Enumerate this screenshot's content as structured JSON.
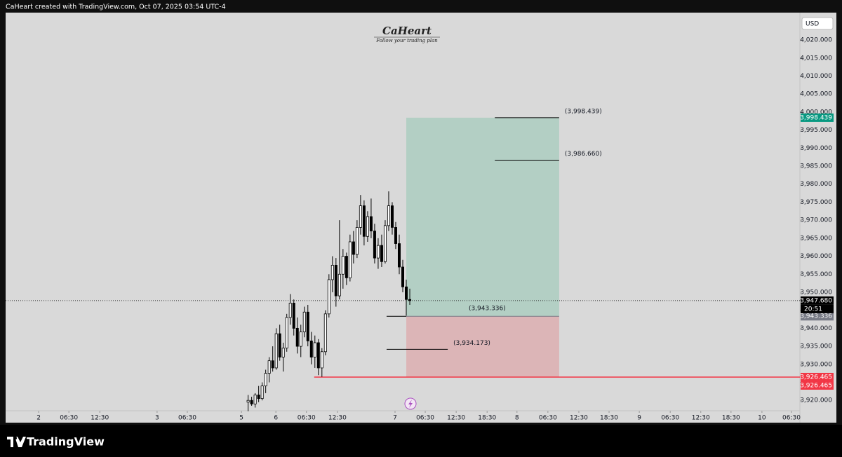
{
  "header": {
    "text": "CaHeart created with TradingView.com, Oct 07, 2025 03:54 UTC-4"
  },
  "watermark": {
    "title": "CaHeart",
    "subtitle": "Follow your trading plan"
  },
  "footer": {
    "brand": "TradingView"
  },
  "chart_data": {
    "type": "candlestick",
    "currency": "USD",
    "up_color": "#ffffff",
    "down_color": "#000000",
    "x": [
      69,
      70,
      71,
      72,
      73,
      74,
      75,
      76,
      77,
      78,
      79,
      80,
      81,
      82,
      83,
      84,
      85,
      86,
      87,
      88,
      89,
      90,
      91,
      92,
      93,
      94,
      95,
      96,
      97,
      98,
      99,
      100,
      101,
      102,
      103,
      104,
      105,
      106,
      107,
      108,
      109,
      110,
      111,
      112,
      113,
      114,
      115
    ],
    "open": [
      3919.5,
      3920,
      3919,
      3921.5,
      3920.5,
      3924,
      3927.5,
      3931,
      3929,
      3938.5,
      3932,
      3934.5,
      3943,
      3947,
      3940,
      3935,
      3939,
      3944.5,
      3936.5,
      3932,
      3936,
      3929,
      3933.5,
      3944,
      3953.5,
      3957.5,
      3949,
      3955,
      3960,
      3954,
      3964,
      3960.5,
      3968,
      3974,
      3965.5,
      3971,
      3967,
      3959.5,
      3963,
      3958.5,
      3968.5,
      3974,
      3968,
      3963.5,
      3957,
      3951.5,
      3948
    ],
    "high": [
      3921.5,
      3921,
      3922,
      3924,
      3925,
      3928.5,
      3932,
      3935,
      3940,
      3941,
      3936,
      3944,
      3949.5,
      3948,
      3943,
      3941,
      3946,
      3946.5,
      3939,
      3938,
      3937,
      3934.5,
      3945,
      3955,
      3960,
      3959.5,
      3970,
      3962,
      3961,
      3966,
      3967,
      3970,
      3977,
      3975.5,
      3972.5,
      3976,
      3969,
      3965,
      3966,
      3970,
      3978,
      3975,
      3969.5,
      3966,
      3959,
      3953.5,
      3951
    ],
    "low": [
      3917,
      3918.5,
      3918,
      3919.5,
      3920,
      3922,
      3925,
      3928,
      3928.5,
      3931,
      3928,
      3933.5,
      3941,
      3938,
      3933,
      3932,
      3937.5,
      3935,
      3930,
      3929,
      3927,
      3926.5,
      3932.5,
      3943,
      3950,
      3946,
      3948,
      3951,
      3952,
      3953,
      3958,
      3959.5,
      3966,
      3963,
      3964,
      3965,
      3958,
      3956.5,
      3957,
      3958,
      3967,
      3966,
      3962,
      3955,
      3950,
      3943.5,
      3946.5
    ],
    "close": [
      3920,
      3919,
      3921.5,
      3920.5,
      3924,
      3927.5,
      3931,
      3929,
      3938.5,
      3932,
      3934.5,
      3943,
      3947,
      3940,
      3935,
      3939,
      3944.5,
      3936.5,
      3932,
      3936,
      3929,
      3933.5,
      3944,
      3953.5,
      3957.5,
      3949,
      3955,
      3960,
      3954,
      3964,
      3960.5,
      3968,
      3974,
      3965.5,
      3971,
      3967,
      3959.5,
      3963,
      3958.5,
      3968.5,
      3974,
      3968,
      3963.5,
      3957,
      3951.5,
      3948,
      3947.68
    ],
    "xlim": [
      0,
      226
    ],
    "xticks": [
      {
        "value": 9.4,
        "label": "2"
      },
      {
        "value": 18,
        "label": "06:30"
      },
      {
        "value": 26.8,
        "label": "12:30"
      },
      {
        "value": 43.1,
        "label": "3"
      },
      {
        "value": 51.7,
        "label": "06:30"
      },
      {
        "value": 67.1,
        "label": "5"
      },
      {
        "value": 76.9,
        "label": "6"
      },
      {
        "value": 85.6,
        "label": "06:30"
      },
      {
        "value": 94.4,
        "label": "12:30"
      },
      {
        "value": 110.8,
        "label": "7"
      },
      {
        "value": 119.4,
        "label": "06:30"
      },
      {
        "value": 128.2,
        "label": "12:30"
      },
      {
        "value": 137,
        "label": "18:30"
      },
      {
        "value": 145.5,
        "label": "8"
      },
      {
        "value": 154.3,
        "label": "06:30"
      },
      {
        "value": 163.1,
        "label": "12:30"
      },
      {
        "value": 171.7,
        "label": "18:30"
      },
      {
        "value": 180.3,
        "label": "9"
      },
      {
        "value": 189.1,
        "label": "06:30"
      },
      {
        "value": 197.8,
        "label": "12:30"
      },
      {
        "value": 206.4,
        "label": "18:30"
      },
      {
        "value": 215.2,
        "label": "10"
      },
      {
        "value": 223.6,
        "label": "06:30"
      }
    ],
    "ylim": [
      3914.4,
      4027.6
    ],
    "yticks": [
      {
        "value": 3920,
        "label": "3,920.000"
      },
      {
        "value": 3925,
        "label": "3,925.000"
      },
      {
        "value": 3930,
        "label": "3,930.000"
      },
      {
        "value": 3935,
        "label": "3,935.000"
      },
      {
        "value": 3940,
        "label": "3,940.000"
      },
      {
        "value": 3945,
        "label": "3,945.000"
      },
      {
        "value": 3950,
        "label": "3,950.000"
      },
      {
        "value": 3955,
        "label": "3,955.000"
      },
      {
        "value": 3960,
        "label": "3,960.000"
      },
      {
        "value": 3965,
        "label": "3,965.000"
      },
      {
        "value": 3970,
        "label": "3,970.000"
      },
      {
        "value": 3975,
        "label": "3,975.000"
      },
      {
        "value": 3980,
        "label": "3,980.000"
      },
      {
        "value": 3985,
        "label": "3,985.000"
      },
      {
        "value": 3990,
        "label": "3,990.000"
      },
      {
        "value": 3995,
        "label": "3,995.000"
      },
      {
        "value": 4000,
        "label": "4,000.000"
      },
      {
        "value": 4005,
        "label": "4,005.000"
      },
      {
        "value": 4010,
        "label": "4,010.000"
      },
      {
        "value": 4015,
        "label": "4,015.000"
      },
      {
        "value": 4020,
        "label": "4,020.000"
      }
    ],
    "last_price": {
      "value": 3947.68,
      "label": "3,947.680",
      "countdown": "20:51"
    },
    "position": {
      "x": [
        114,
        157.5
      ],
      "target": 3998.439,
      "entry": 3943.336,
      "stop": 3926.465,
      "profit_color": "#b3cfc4",
      "loss_color": "#dcb5b7"
    },
    "levels": [
      {
        "value": 3998.439,
        "label": "(3,998.439)",
        "x": [
          139.2,
          157.5
        ]
      },
      {
        "value": 3986.66,
        "label": "(3,986.660)",
        "x": [
          139.2,
          157.5
        ]
      },
      {
        "value": 3943.336,
        "label": "(3,943.336)",
        "x": [
          108.4,
          114
        ]
      },
      {
        "value": 3934.173,
        "label": "(3,934.173)",
        "x": [
          108.4,
          125.8
        ]
      }
    ],
    "stop_line": {
      "value": 3926.465,
      "x": [
        87.8,
        226
      ],
      "color": "#f23645"
    },
    "axis_tags": [
      {
        "value": 3998.439,
        "label": "3,998.439",
        "color": "#089981"
      },
      {
        "value": 3943.336,
        "label": "3,943.336",
        "color": "#787b86"
      },
      {
        "value": 3926.465,
        "label": "3,926.465",
        "color": "#f23645"
      },
      {
        "value": 3926.465,
        "label": "3,926.465",
        "color": "#f23645"
      }
    ]
  }
}
